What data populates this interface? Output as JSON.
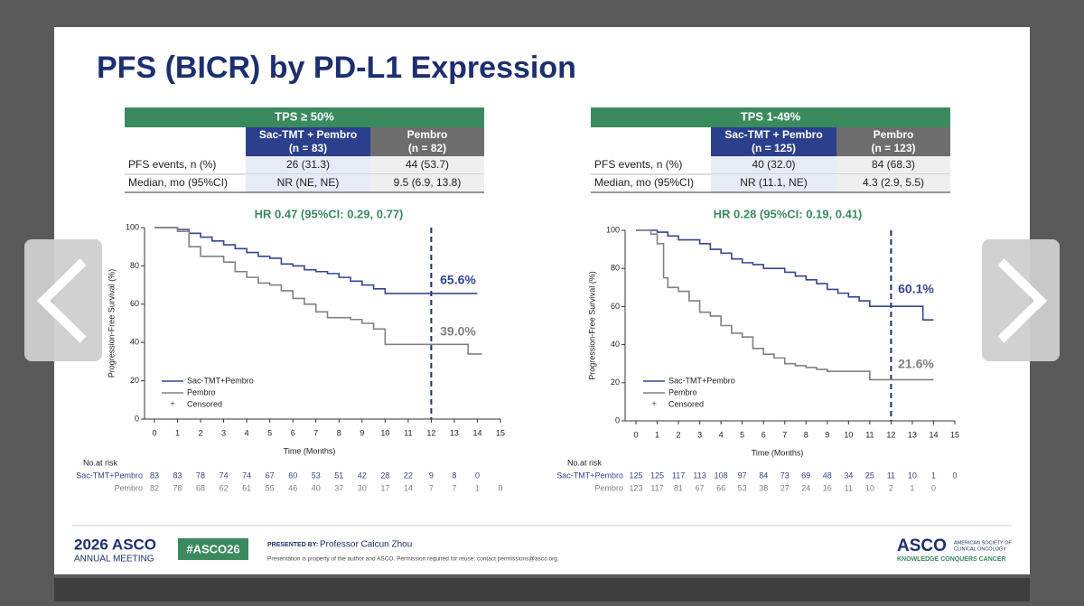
{
  "slide": {
    "title": "PFS (BICR) by PD-L1 Expression",
    "footer": {
      "brand": "2026 ASCO",
      "meeting": "ANNUAL MEETING",
      "hashtag": "#ASCO26",
      "presented_by": "PRESENTED BY:",
      "presenter": "Professor Caicun Zhou",
      "notice": "Presentation is property of the author and ASCO. Permission required for reuse; contact permissions@asco.org.",
      "logo": "ASCO",
      "logo_sub": [
        "AMERICAN SOCIETY OF",
        "CLINICAL ONCOLOGY"
      ],
      "tagline": "KNOWLEDGE CONQUERS CANCER"
    }
  },
  "tables": [
    {
      "title": "TPS ≥ 50%",
      "columns": [
        [
          "Sac-TMT + Pembro",
          "(n = 83)"
        ],
        [
          "Pembro",
          "(n = 82)"
        ]
      ],
      "rows": [
        [
          "PFS events, n (%)",
          "26 (31.3)",
          "44 (53.7)"
        ],
        [
          "Median, mo (95%CI)",
          "NR (NE, NE)",
          "9.5 (6.9, 13.8)"
        ]
      ]
    },
    {
      "title": "TPS 1-49%",
      "columns": [
        [
          "Sac-TMT + Pembro",
          "(n = 125)"
        ],
        [
          "Pembro",
          "(n = 123)"
        ]
      ],
      "rows": [
        [
          "PFS events, n (%)",
          "40 (32.0)",
          "84 (68.3)"
        ],
        [
          "Median, mo (95%CI)",
          "NR (11.1, NE)",
          "4.3 (2.9, 5.5)"
        ]
      ]
    }
  ],
  "chart_data": [
    {
      "type": "step",
      "title": "HR 0.47 (95%CI: 0.29, 0.77)",
      "x_label": "Time (Months)",
      "y_label": "Progression-Free Survival (%)",
      "xlim": [
        0,
        15
      ],
      "ylim": [
        0,
        100
      ],
      "xticks": [
        0,
        1,
        2,
        3,
        4,
        5,
        6,
        7,
        8,
        9,
        10,
        11,
        12,
        13,
        14,
        15
      ],
      "yticks": [
        0,
        20,
        40,
        60,
        80,
        100
      ],
      "vline": 12,
      "legend": [
        "Sac-TMT+Pembro",
        "Pembro",
        "Censored"
      ],
      "annotations": [
        "65.6%",
        "39.0%"
      ],
      "series": [
        {
          "name": "Sac-TMT+Pembro",
          "color": "#34468f",
          "x": [
            0,
            1,
            1.5,
            2,
            2.5,
            3,
            3.5,
            4,
            4.5,
            5,
            5.5,
            6,
            6.5,
            7,
            7.5,
            8,
            8.5,
            9,
            9.5,
            10,
            14
          ],
          "values": [
            100,
            99,
            97,
            95,
            93,
            91,
            89,
            87,
            85,
            84,
            81,
            80,
            78,
            77,
            76,
            74,
            72,
            70,
            68,
            65.6,
            65.6
          ]
        },
        {
          "name": "Pembro",
          "color": "#808080",
          "x": [
            0,
            1,
            1.5,
            2,
            3,
            3.5,
            4,
            4.5,
            5,
            5.5,
            6,
            6.5,
            7,
            7.5,
            8.5,
            9,
            9.5,
            10,
            13.6,
            14.2
          ],
          "values": [
            100,
            98,
            90,
            85,
            82,
            77,
            74,
            71,
            70,
            67,
            63,
            60,
            56,
            53,
            52,
            50,
            47,
            39,
            34,
            34
          ]
        }
      ],
      "at_risk_label": "No.at risk",
      "at_risk": [
        {
          "name": "Sac-TMT+Pembro",
          "values": [
            83,
            83,
            78,
            74,
            74,
            67,
            60,
            53,
            51,
            42,
            28,
            22,
            9,
            8,
            0
          ]
        },
        {
          "name": "Pembro",
          "values": [
            82,
            78,
            68,
            62,
            61,
            55,
            46,
            40,
            37,
            30,
            17,
            14,
            7,
            7,
            1,
            0
          ]
        }
      ]
    },
    {
      "type": "step",
      "title": "HR 0.28 (95%CI: 0.19, 0.41)",
      "x_label": "Time (Months)",
      "y_label": "Progression-Free Survival (%)",
      "xlim": [
        0,
        15
      ],
      "ylim": [
        0,
        100
      ],
      "xticks": [
        0,
        1,
        2,
        3,
        4,
        5,
        6,
        7,
        8,
        9,
        10,
        11,
        12,
        13,
        14,
        15
      ],
      "yticks": [
        0,
        20,
        40,
        60,
        80,
        100
      ],
      "vline": 12,
      "legend": [
        "Sac-TMT+Pembro",
        "Pembro",
        "Censored"
      ],
      "annotations": [
        "60.1%",
        "21.6%"
      ],
      "series": [
        {
          "name": "Sac-TMT+Pembro",
          "color": "#34468f",
          "x": [
            0,
            1,
            1.5,
            2,
            3,
            3.5,
            4,
            4.5,
            5,
            5.5,
            6,
            7,
            7.5,
            8,
            8.5,
            9,
            9.5,
            10,
            10.5,
            11,
            13.5,
            14
          ],
          "values": [
            100,
            99,
            97,
            95,
            93,
            90,
            88,
            85,
            83,
            82,
            80,
            78,
            76,
            74,
            72,
            69,
            67,
            65,
            63,
            60.1,
            53,
            53
          ]
        },
        {
          "name": "Pembro",
          "color": "#808080",
          "x": [
            0,
            0.7,
            1,
            1.3,
            1.5,
            2,
            2.5,
            3,
            3.5,
            4,
            4.5,
            5,
            5.5,
            6,
            6.5,
            7,
            7.5,
            8,
            8.5,
            9,
            11,
            14
          ],
          "values": [
            100,
            98,
            93,
            75,
            70,
            68,
            63,
            57,
            55,
            50,
            46,
            44,
            38,
            35,
            33,
            30,
            29,
            28,
            27,
            26,
            21.6,
            21.6
          ]
        }
      ],
      "at_risk_label": "No.at risk",
      "at_risk": [
        {
          "name": "Sac-TMT+Pembro",
          "values": [
            125,
            125,
            117,
            113,
            108,
            97,
            84,
            73,
            69,
            48,
            34,
            25,
            11,
            10,
            1,
            0
          ]
        },
        {
          "name": "Pembro",
          "values": [
            123,
            117,
            81,
            67,
            66,
            53,
            38,
            27,
            24,
            16,
            11,
            10,
            2,
            1,
            0
          ]
        }
      ]
    }
  ]
}
